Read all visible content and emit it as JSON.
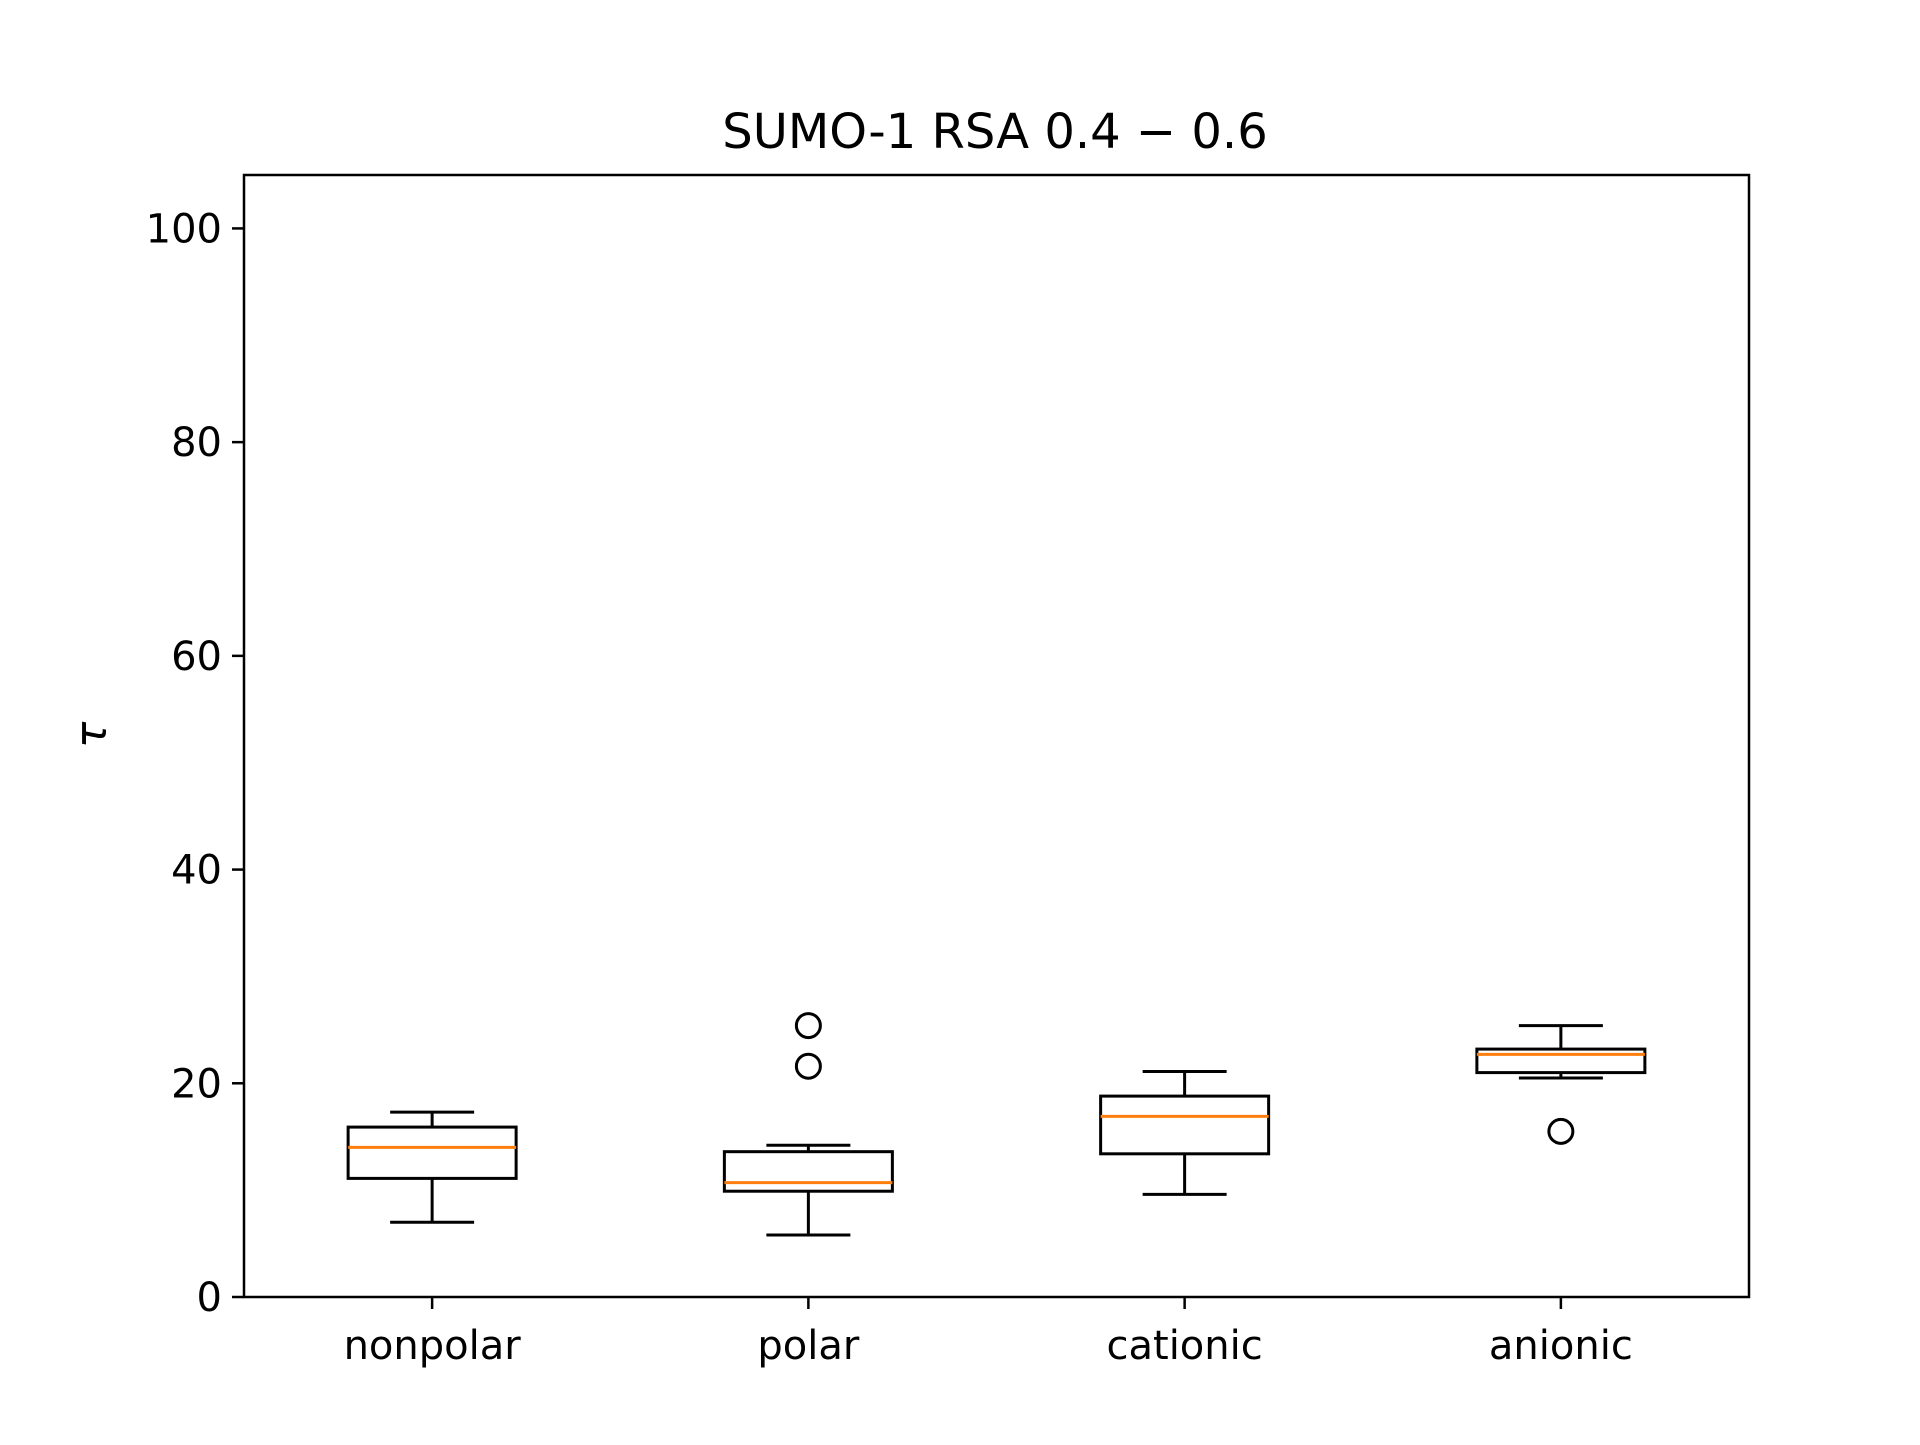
{
  "chart_data": {
    "type": "boxplot",
    "title": "SUMO-1 RSA 0.4 − 0.6",
    "ylabel": "τ",
    "xlabel": "",
    "ylim": [
      0,
      105
    ],
    "yticks": [
      0,
      20,
      40,
      60,
      80,
      100
    ],
    "categories": [
      "nonpolar",
      "polar",
      "cationic",
      "anionic"
    ],
    "boxes": [
      {
        "category": "nonpolar",
        "whisker_low": 7.0,
        "q1": 11.1,
        "median": 14.0,
        "q3": 15.9,
        "whisker_high": 17.3,
        "outliers": []
      },
      {
        "category": "polar",
        "whisker_low": 5.8,
        "q1": 9.9,
        "median": 10.7,
        "q3": 13.6,
        "whisker_high": 14.2,
        "outliers": [
          21.6,
          25.4
        ]
      },
      {
        "category": "cationic",
        "whisker_low": 9.6,
        "q1": 13.4,
        "median": 16.9,
        "q3": 18.8,
        "whisker_high": 21.1,
        "outliers": []
      },
      {
        "category": "anionic",
        "whisker_low": 20.5,
        "q1": 21.0,
        "median": 22.7,
        "q3": 23.2,
        "whisker_high": 25.4,
        "outliers": [
          15.5
        ]
      }
    ],
    "grid": false,
    "colors": {
      "box": "#000000",
      "median": "#ff7f0e",
      "outlier": "#000000"
    }
  }
}
